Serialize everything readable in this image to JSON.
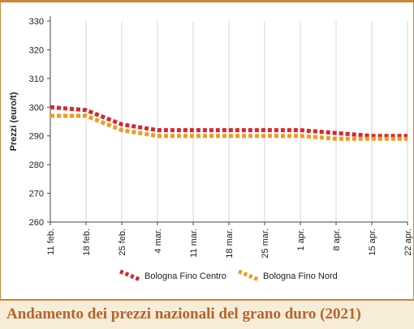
{
  "caption": "Andamento dei prezzi nazionali del grano duro (2021)",
  "chart_data": {
    "type": "line",
    "title": "",
    "xlabel": "",
    "ylabel": "Prezzi (euro/t)",
    "categories": [
      "11 feb.",
      "18 feb.",
      "25 feb.",
      "4 mar.",
      "11 mar.",
      "18 mar.",
      "25 mar.",
      "1 apr.",
      "8 apr.",
      "15 apr.",
      "22 apr."
    ],
    "ylim": [
      260,
      330
    ],
    "yticks": [
      260,
      270,
      280,
      290,
      300,
      310,
      320,
      330
    ],
    "grid": "vertical",
    "legend_position": "bottom",
    "series": [
      {
        "name": "Bologna Fino Centro",
        "color": "#d8262e",
        "values": [
          300,
          299,
          294,
          292,
          292,
          292,
          292,
          292,
          291,
          290,
          290
        ]
      },
      {
        "name": "Bologna Fino Nord",
        "color": "#f29a1f",
        "values": [
          297,
          297,
          292,
          290,
          290,
          290,
          290,
          290,
          289,
          289,
          289
        ]
      }
    ]
  },
  "colors": {
    "accent": "#c8873a",
    "caption_bg": "#f6ecd8",
    "caption_text": "#b8632a"
  }
}
